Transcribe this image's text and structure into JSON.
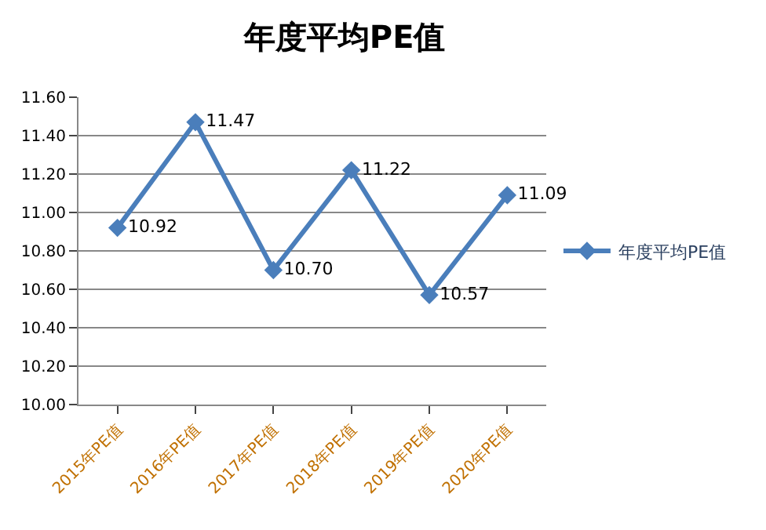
{
  "chart_data": {
    "type": "line",
    "title": "年度平均PE值",
    "categories": [
      "2015年PE值",
      "2016年PE值",
      "2017年PE值",
      "2018年PE值",
      "2019年PE值",
      "2020年PE值"
    ],
    "series": [
      {
        "name": "年度平均PE值",
        "color": "#4a7ebb",
        "values": [
          10.92,
          11.47,
          10.7,
          11.22,
          10.57,
          11.09
        ],
        "value_labels": [
          "10.92",
          "11.47",
          "10.70",
          "11.22",
          "10.57",
          "11.09"
        ]
      }
    ],
    "ylim": [
      10,
      11.6
    ],
    "yticks": [
      {
        "value": 10,
        "label": "10.00"
      },
      {
        "value": 10.2,
        "label": "10.20"
      },
      {
        "value": 10.4,
        "label": "10.40"
      },
      {
        "value": 10.6,
        "label": "10.60"
      },
      {
        "value": 10.8,
        "label": "10.80"
      },
      {
        "value": 11,
        "label": "11.00"
      },
      {
        "value": 11.2,
        "label": "11.20"
      },
      {
        "value": 11.4,
        "label": "11.40"
      },
      {
        "value": 11.6,
        "label": "11.60"
      }
    ],
    "grid": "y",
    "legend": "right",
    "marker": "diamond",
    "line_style": "solid"
  }
}
